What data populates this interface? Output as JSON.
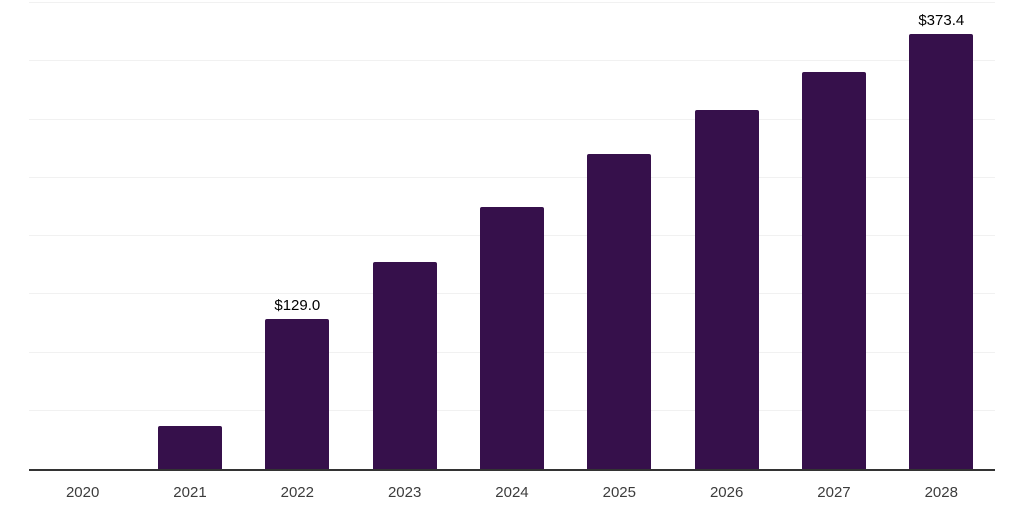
{
  "chart_data": {
    "type": "bar",
    "title": "",
    "xlabel": "",
    "ylabel": "",
    "categories": [
      "2020",
      "2021",
      "2022",
      "2023",
      "2024",
      "2025",
      "2026",
      "2027",
      "2028"
    ],
    "values": [
      0,
      37,
      129.0,
      178,
      225,
      270,
      308,
      341,
      373.4
    ],
    "point_labels": [
      "",
      "",
      "$129.0",
      "",
      "",
      "",
      "",
      "",
      "$373.4"
    ],
    "ylim": [
      0,
      400
    ],
    "gridline_step": 50,
    "grid": "on",
    "y_tick_labels_visible": false,
    "legend_position": "none",
    "colors": {
      "bar": "#36104B",
      "gridline": "#F1F1F1",
      "axis_line": "#333333",
      "data_label": "#000000",
      "tick_label": "#3C3C3C",
      "background": "#FFFFFF"
    }
  }
}
